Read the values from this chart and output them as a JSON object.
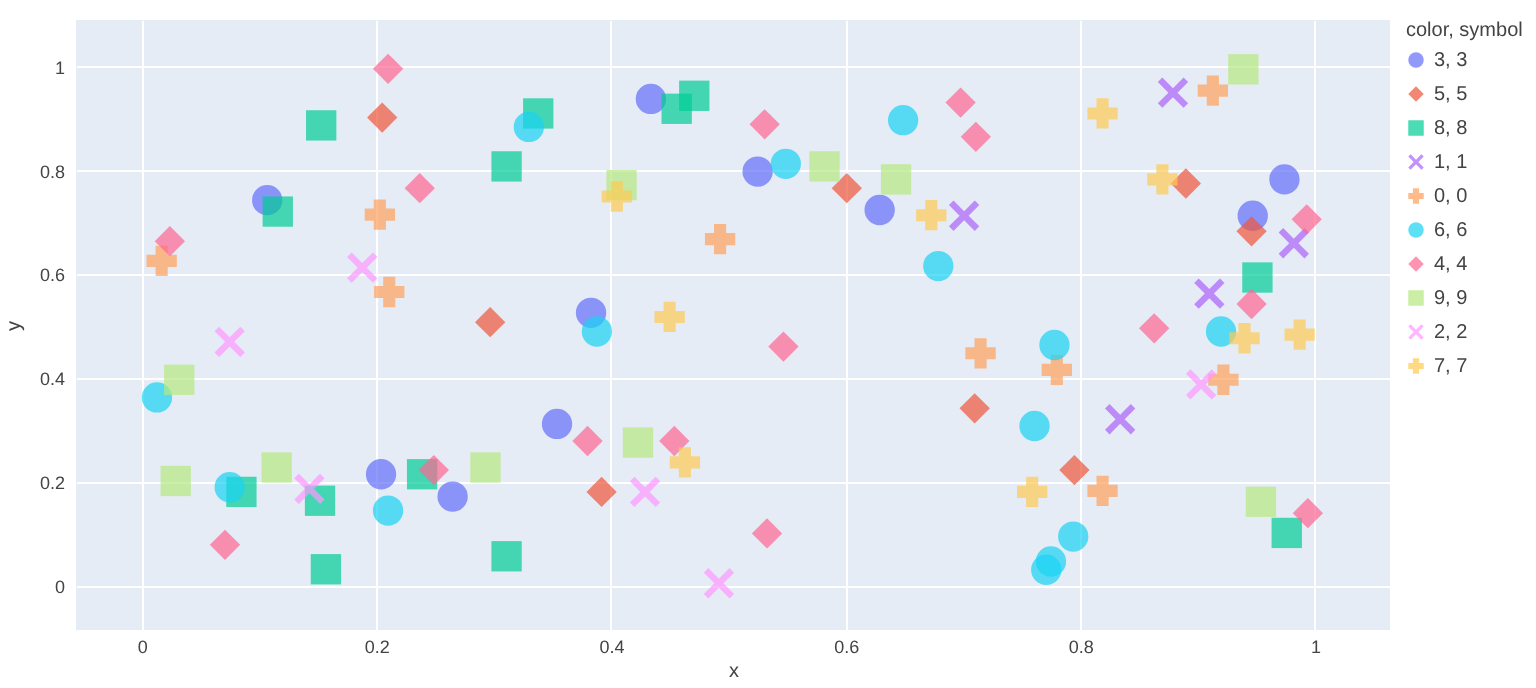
{
  "chart_data": {
    "type": "scatter",
    "xlabel": "x",
    "ylabel": "y",
    "legend_title": "color, symbol",
    "legend": "right",
    "grid": true,
    "xlim": [
      -0.056,
      1.064
    ],
    "ylim": [
      -0.085,
      1.09
    ],
    "xticks": [
      0,
      0.2,
      0.4,
      0.6,
      0.8,
      1
    ],
    "yticks": [
      0,
      0.2,
      0.4,
      0.6,
      0.8,
      1
    ],
    "series": [
      {
        "name": "3, 3",
        "color": "#636efa",
        "marker": "circle",
        "x": [
          0.107,
          0.383,
          0.434,
          0.525,
          0.629,
          0.974,
          0.947,
          0.204,
          0.265,
          0.354
        ],
        "values": [
          0.743,
          0.526,
          0.938,
          0.798,
          0.724,
          0.783,
          0.713,
          0.215,
          0.172,
          0.312
        ]
      },
      {
        "name": "5, 5",
        "color": "#ef553b",
        "marker": "diamond",
        "x": [
          0.205,
          0.297,
          0.601,
          0.89,
          0.946,
          0.71,
          0.795,
          0.392
        ],
        "values": [
          0.902,
          0.508,
          0.766,
          0.775,
          0.683,
          0.342,
          0.223,
          0.181
        ]
      },
      {
        "name": "8, 8",
        "color": "#00cc96",
        "marker": "square",
        "x": [
          0.116,
          0.153,
          0.311,
          0.338,
          0.456,
          0.471,
          0.951,
          0.976,
          0.085,
          0.152,
          0.157,
          0.239,
          0.311
        ],
        "values": [
          0.721,
          0.887,
          0.808,
          0.91,
          0.919,
          0.944,
          0.594,
          0.102,
          0.181,
          0.164,
          0.032,
          0.215,
          0.057
        ]
      },
      {
        "name": "1, 1",
        "color": "#ab63fa",
        "marker": "x",
        "x": [
          0.701,
          0.879,
          0.982,
          0.91,
          0.834
        ],
        "values": [
          0.713,
          0.95,
          0.66,
          0.563,
          0.321
        ]
      },
      {
        "name": "0, 0",
        "color": "#ffa15a",
        "marker": "cross",
        "x": [
          0.017,
          0.203,
          0.211,
          0.493,
          0.913,
          0.715,
          0.78,
          0.922,
          0.819
        ],
        "values": [
          0.626,
          0.715,
          0.566,
          0.668,
          0.954,
          0.448,
          0.416,
          0.397,
          0.183
        ]
      },
      {
        "name": "6, 6",
        "color": "#19d3f3",
        "marker": "circle",
        "x": [
          0.33,
          0.388,
          0.549,
          0.649,
          0.679,
          0.92,
          0.778,
          0.761,
          0.794,
          0.775,
          0.771,
          0.013,
          0.075,
          0.21
        ],
        "values": [
          0.884,
          0.49,
          0.813,
          0.897,
          0.616,
          0.49,
          0.464,
          0.308,
          0.095,
          0.047,
          0.031,
          0.363,
          0.19,
          0.145
        ]
      },
      {
        "name": "4, 4",
        "color": "#ff6692",
        "marker": "diamond",
        "x": [
          0.024,
          0.21,
          0.237,
          0.531,
          0.698,
          0.711,
          0.993,
          0.946,
          0.863,
          0.547,
          0.994,
          0.533,
          0.071,
          0.249,
          0.38,
          0.454
        ],
        "values": [
          0.664,
          0.996,
          0.766,
          0.889,
          0.931,
          0.865,
          0.706,
          0.543,
          0.496,
          0.461,
          0.14,
          0.101,
          0.079,
          0.223,
          0.279,
          0.279
        ]
      },
      {
        "name": "9, 9",
        "color": "#b6e880",
        "marker": "square",
        "x": [
          0.409,
          0.582,
          0.643,
          0.939,
          0.954,
          0.032,
          0.029,
          0.115,
          0.293,
          0.423
        ],
        "values": [
          0.772,
          0.808,
          0.783,
          0.995,
          0.162,
          0.397,
          0.202,
          0.228,
          0.228,
          0.276
        ]
      },
      {
        "name": "2, 2",
        "color": "#ff97ff",
        "marker": "x",
        "x": [
          0.188,
          0.903,
          0.492,
          0.075,
          0.143,
          0.429
        ],
        "values": [
          0.613,
          0.388,
          0.005,
          0.47,
          0.187,
          0.181
        ]
      },
      {
        "name": "7, 7",
        "color": "#fecb52",
        "marker": "cross",
        "x": [
          0.405,
          0.45,
          0.819,
          0.673,
          0.87,
          0.94,
          0.987,
          0.759,
          0.463
        ],
        "values": [
          0.75,
          0.518,
          0.91,
          0.714,
          0.783,
          0.477,
          0.484,
          0.181,
          0.238
        ]
      }
    ]
  }
}
